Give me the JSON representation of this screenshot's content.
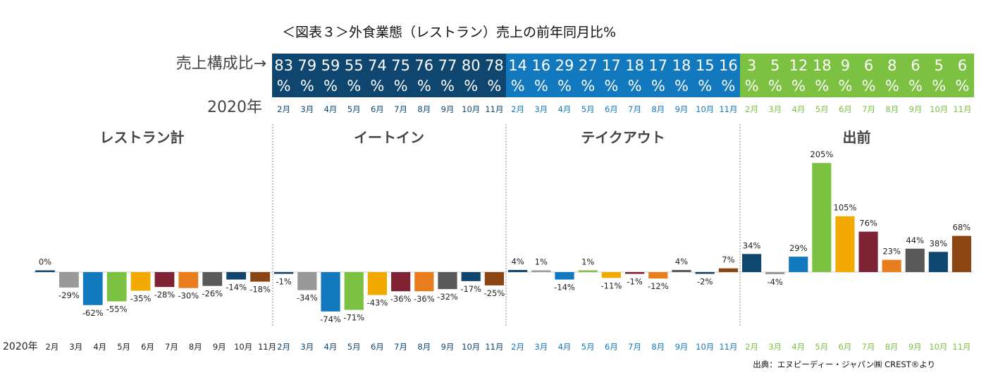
{
  "title": "＜図表３＞外食業態（レストラン）売上の前年同月比%",
  "share_label": "売上構成比→",
  "year_label": "2020年",
  "source": "出典：エヌピーディー・ジャパン㈱ CREST®より",
  "months": [
    "2月",
    "3月",
    "4月",
    "5月",
    "6月",
    "7月",
    "8月",
    "9月",
    "10月",
    "11月"
  ],
  "colors": {
    "strip": [
      "#0f4670",
      "#1279be",
      "#7cc142"
    ],
    "month_text": [
      "#0f4670",
      "#1279be",
      "#7cc142"
    ],
    "bars": [
      "#0f4670",
      "#999999",
      "#1279be",
      "#7cc142",
      "#f2a900",
      "#7f2234",
      "#e87d1e",
      "#595959",
      "#0f4670",
      "#8b4512"
    ]
  },
  "share_rows": [
    {
      "group": "イートイン",
      "values": [
        83,
        79,
        59,
        55,
        74,
        75,
        76,
        77,
        80,
        78
      ]
    },
    {
      "group": "テイクアウト",
      "values": [
        14,
        16,
        29,
        27,
        17,
        18,
        17,
        18,
        15,
        16
      ]
    },
    {
      "group": "出前",
      "values": [
        3,
        5,
        12,
        18,
        9,
        6,
        8,
        6,
        5,
        6
      ]
    }
  ],
  "share_unit": "%",
  "chart_data": {
    "type": "bar",
    "categories": [
      "2月",
      "3月",
      "4月",
      "5月",
      "6月",
      "7月",
      "8月",
      "9月",
      "10月",
      "11月"
    ],
    "ylabel": "",
    "series": [
      {
        "name": "レストラン計",
        "values": [
          0,
          -29,
          -62,
          -55,
          -35,
          -28,
          -30,
          -26,
          -14,
          -18
        ]
      },
      {
        "name": "イートイン",
        "values": [
          -1,
          -34,
          -74,
          -71,
          -43,
          -36,
          -36,
          -32,
          -17,
          -25
        ]
      },
      {
        "name": "テイクアウト",
        "values": [
          4,
          1,
          -14,
          1,
          -11,
          -1,
          -12,
          4,
          -2,
          7
        ]
      },
      {
        "name": "出前",
        "values": [
          34,
          -4,
          29,
          205,
          105,
          76,
          23,
          44,
          38,
          68
        ]
      }
    ],
    "labels": [
      [
        "0%",
        "-29%",
        "-62%",
        "-55%",
        "-35%",
        "-28%",
        "-30%",
        "-26%",
        "-14%",
        "-18%"
      ],
      [
        "-1%",
        "-34%",
        "-74%",
        "-71%",
        "-43%",
        "-36%",
        "-36%",
        "-32%",
        "-17%",
        "-25%"
      ],
      [
        "4%",
        "1%",
        "-14%",
        "1%",
        "-11%",
        "-1%",
        "-12%",
        "4%",
        "-2%",
        "7%"
      ],
      [
        "34%",
        "-4%",
        "29%",
        "205%",
        "105%",
        "76%",
        "23%",
        "44%",
        "38%",
        "68%"
      ]
    ]
  }
}
